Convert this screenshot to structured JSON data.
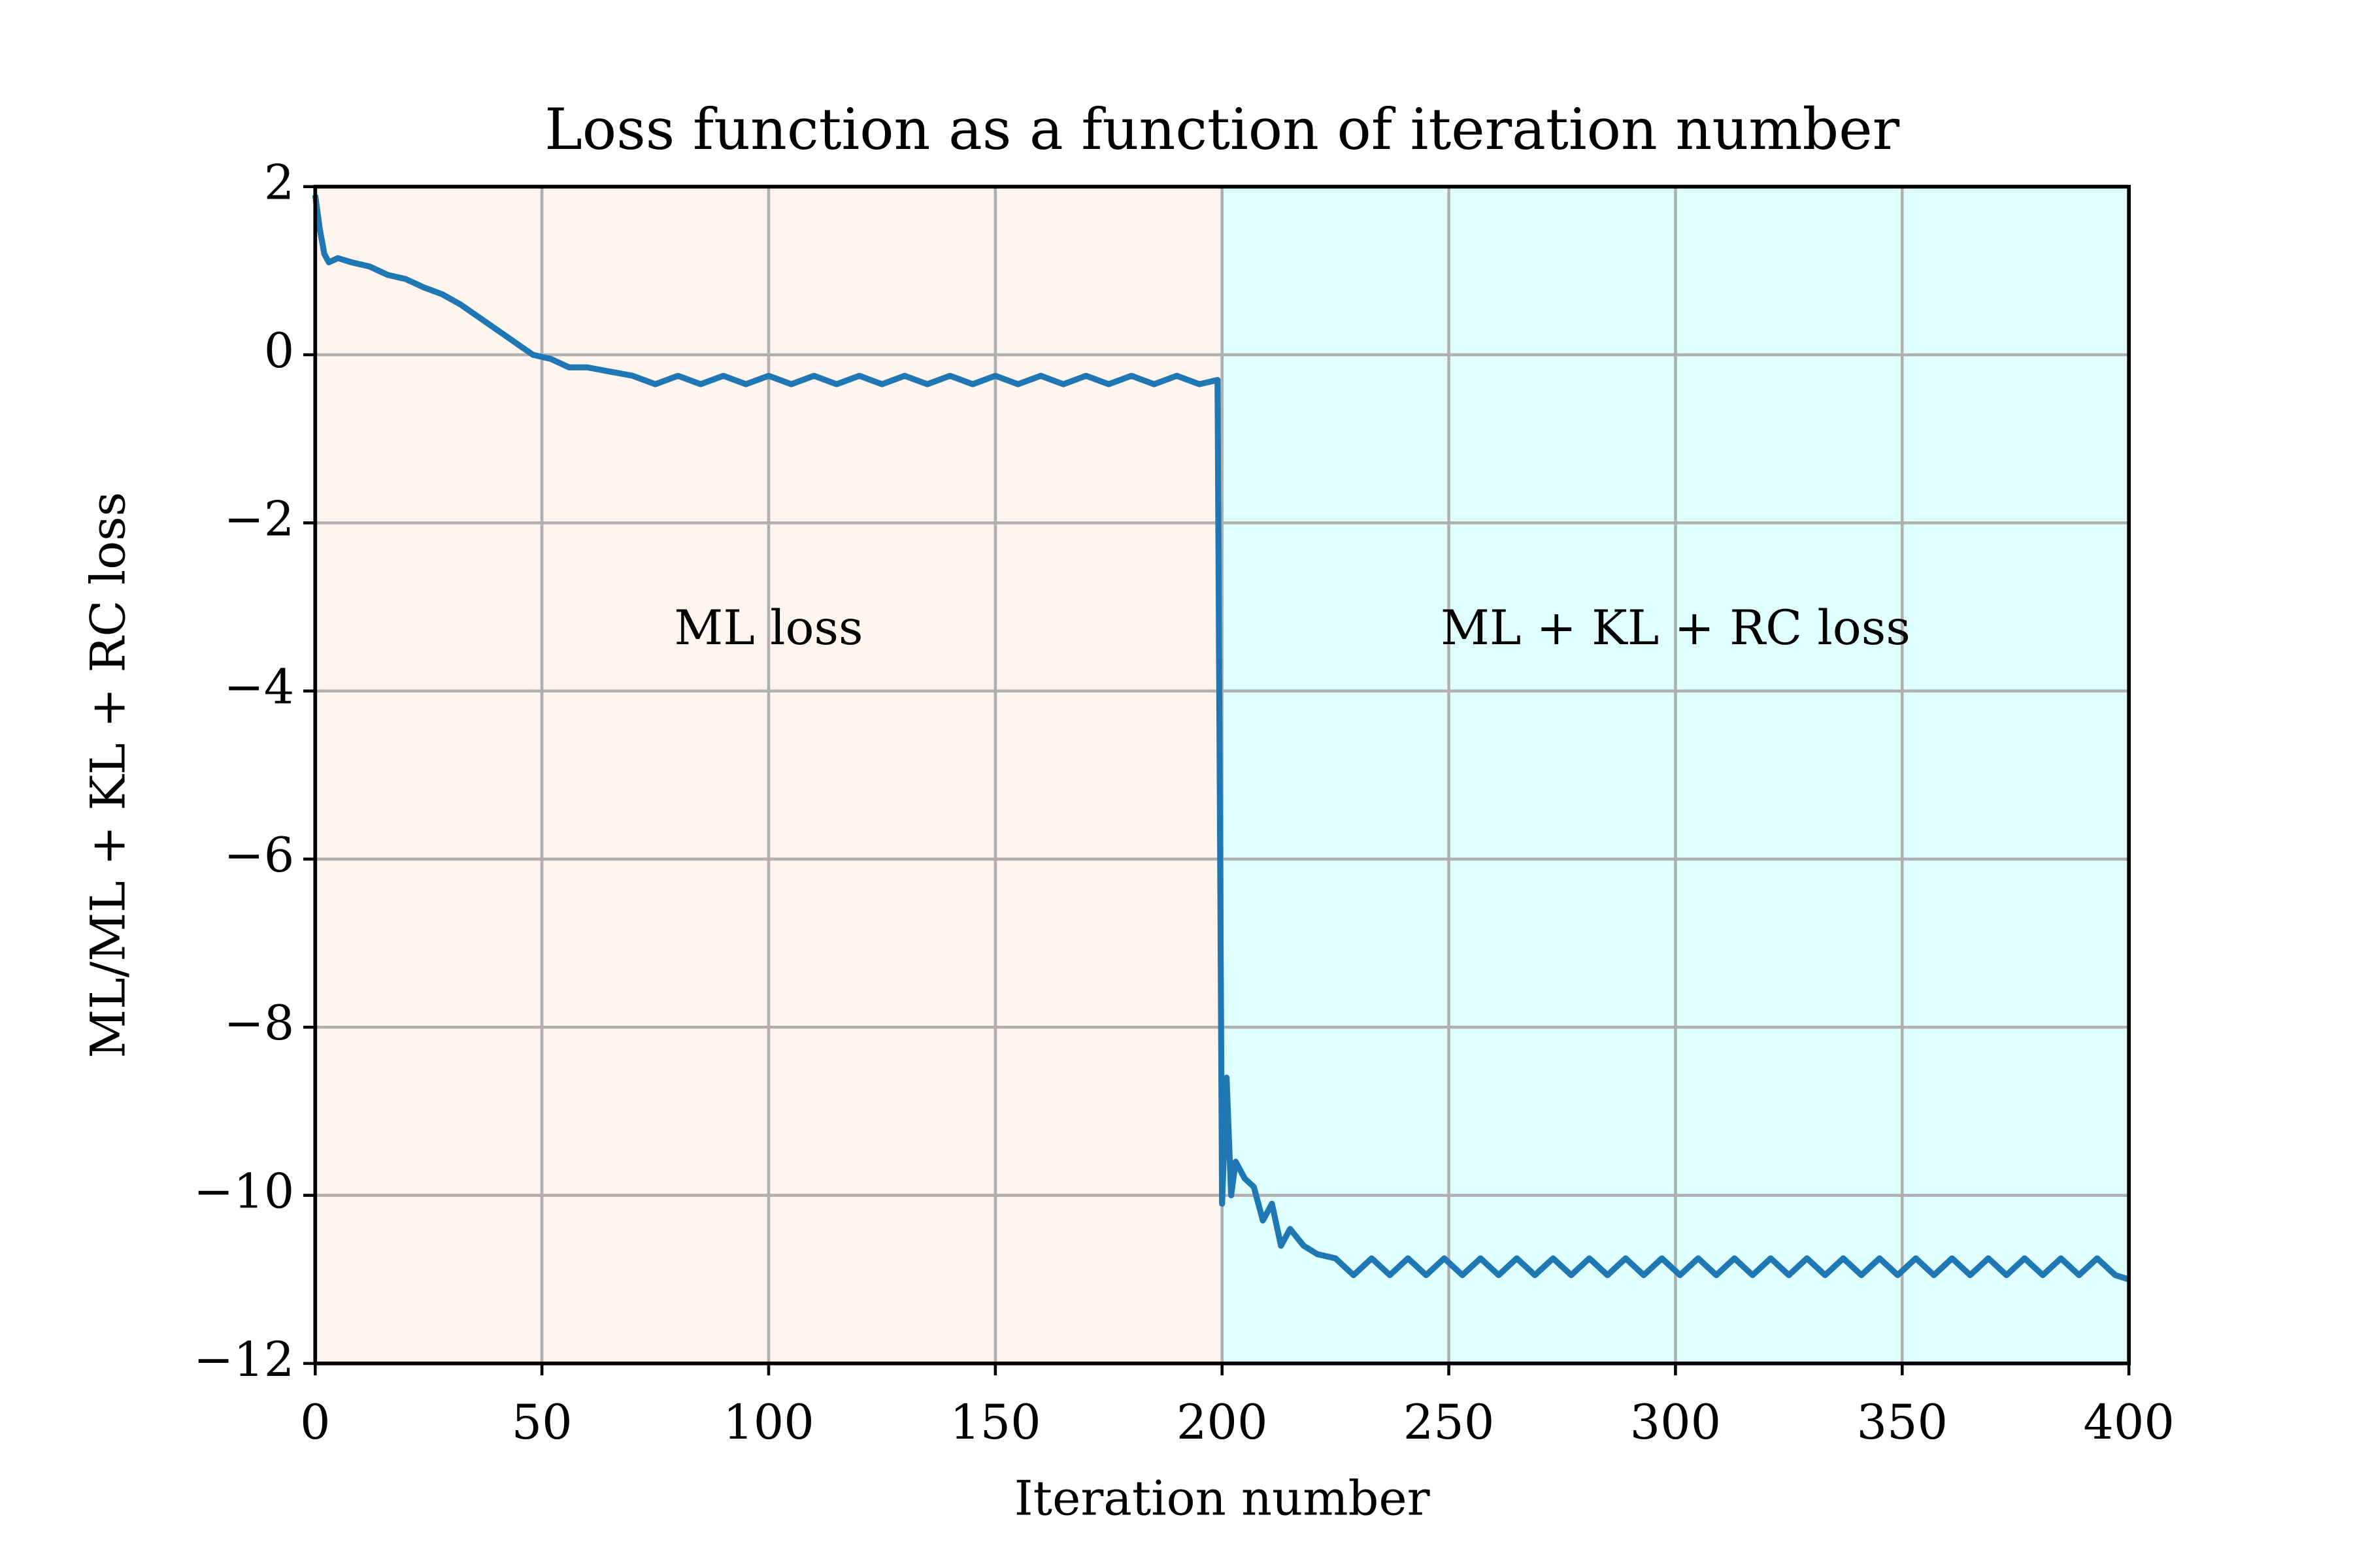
{
  "chart_data": {
    "type": "line",
    "title": "Loss function as a function of iteration number",
    "xlabel": "Iteration number",
    "ylabel": "ML/ML + KL + RC loss",
    "regions": [
      {
        "label": "ML loss",
        "xlim": [
          0,
          200
        ],
        "color": "#fff4ee"
      },
      {
        "label": "ML + KL + RC loss",
        "xlim": [
          200,
          400
        ],
        "color": "#e0ffff"
      }
    ],
    "x": [
      0,
      1,
      2,
      3,
      5,
      8,
      12,
      16,
      20,
      24,
      28,
      32,
      36,
      40,
      44,
      48,
      52,
      56,
      60,
      65,
      70,
      75,
      80,
      85,
      90,
      95,
      100,
      105,
      110,
      115,
      120,
      125,
      130,
      135,
      140,
      145,
      150,
      155,
      160,
      165,
      170,
      175,
      180,
      185,
      190,
      195,
      199,
      200,
      201,
      202,
      203,
      205,
      207,
      209,
      211,
      213,
      215,
      218,
      221,
      225,
      229,
      233,
      237,
      241,
      245,
      249,
      253,
      257,
      261,
      265,
      269,
      273,
      277,
      281,
      285,
      289,
      293,
      297,
      301,
      305,
      309,
      313,
      317,
      321,
      325,
      329,
      333,
      337,
      341,
      345,
      349,
      353,
      357,
      361,
      365,
      369,
      373,
      377,
      381,
      385,
      389,
      393,
      397,
      400
    ],
    "series": [
      {
        "color": "#1f77b4",
        "values": [
          1.9,
          1.5,
          1.2,
          1.1,
          1.15,
          1.1,
          1.05,
          0.95,
          0.9,
          0.8,
          0.72,
          0.6,
          0.45,
          0.3,
          0.15,
          0.0,
          -0.05,
          -0.15,
          -0.15,
          -0.2,
          -0.25,
          -0.35,
          -0.25,
          -0.35,
          -0.25,
          -0.35,
          -0.25,
          -0.35,
          -0.25,
          -0.35,
          -0.25,
          -0.35,
          -0.25,
          -0.35,
          -0.25,
          -0.35,
          -0.25,
          -0.35,
          -0.25,
          -0.35,
          -0.25,
          -0.35,
          -0.25,
          -0.35,
          -0.25,
          -0.35,
          -0.3,
          -10.1,
          -8.6,
          -10.0,
          -9.6,
          -9.8,
          -9.9,
          -10.3,
          -10.1,
          -10.6,
          -10.4,
          -10.6,
          -10.7,
          -10.75,
          -10.95,
          -10.75,
          -10.95,
          -10.75,
          -10.95,
          -10.75,
          -10.95,
          -10.75,
          -10.95,
          -10.75,
          -10.95,
          -10.75,
          -10.95,
          -10.75,
          -10.95,
          -10.75,
          -10.95,
          -10.75,
          -10.95,
          -10.75,
          -10.95,
          -10.75,
          -10.95,
          -10.75,
          -10.95,
          -10.75,
          -10.95,
          -10.75,
          -10.95,
          -10.75,
          -10.95,
          -10.75,
          -10.95,
          -10.75,
          -10.95,
          -10.75,
          -10.95,
          -10.75,
          -10.95,
          -10.75,
          -10.95,
          -10.75,
          -10.95,
          -11.0
        ]
      }
    ],
    "xlim": [
      0,
      400
    ],
    "xticks": [
      0,
      50,
      100,
      150,
      200,
      250,
      300,
      350,
      400
    ],
    "ylim": [
      -12,
      2
    ],
    "yticks": [
      {
        "value": -12,
        "label": "−12"
      },
      {
        "value": -10,
        "label": "−10"
      },
      {
        "value": -8,
        "label": "−8"
      },
      {
        "value": -6,
        "label": "−6"
      },
      {
        "value": -4,
        "label": "−4"
      },
      {
        "value": -2,
        "label": "−2"
      },
      0,
      2
    ],
    "grid": true
  }
}
